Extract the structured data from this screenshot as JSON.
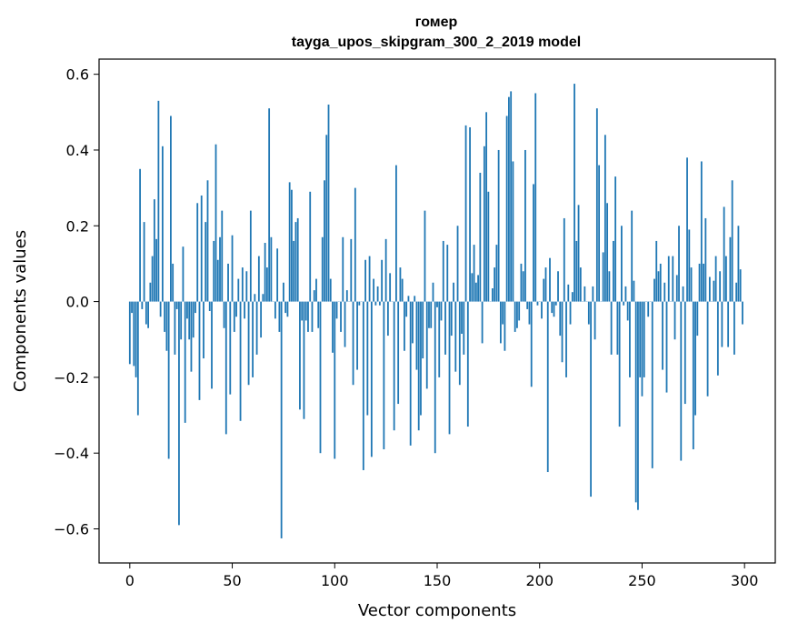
{
  "chart_data": {
    "type": "bar",
    "title": "гомер",
    "subtitle": "tayga_upos_skipgram_300_2_2019 model",
    "xlabel": "Vector components",
    "ylabel": "Components values",
    "xlim": [
      -15,
      315
    ],
    "ylim": [
      -0.69,
      0.64
    ],
    "xticks": [
      0,
      50,
      100,
      150,
      200,
      250,
      300
    ],
    "xtick_labels": [
      "0",
      "50",
      "100",
      "150",
      "200",
      "250",
      "300"
    ],
    "yticks": [
      -0.6,
      -0.4,
      -0.2,
      0.0,
      0.2,
      0.4,
      0.6
    ],
    "ytick_labels": [
      "−0.6",
      "−0.4",
      "−0.2",
      "0.0",
      "0.2",
      "0.4",
      "0.6"
    ],
    "bar_color": "#1f77b4",
    "values": [
      -0.165,
      -0.03,
      -0.17,
      -0.2,
      -0.3,
      0.35,
      -0.02,
      0.21,
      -0.06,
      -0.07,
      0.05,
      0.12,
      0.27,
      0.165,
      0.53,
      -0.04,
      0.41,
      -0.08,
      -0.13,
      -0.415,
      0.49,
      0.1,
      -0.14,
      -0.02,
      -0.59,
      -0.1,
      0.145,
      -0.32,
      -0.045,
      -0.1,
      -0.185,
      -0.095,
      -0.03,
      0.26,
      -0.26,
      0.28,
      -0.15,
      0.21,
      0.32,
      -0.025,
      -0.23,
      0.16,
      0.415,
      0.11,
      0.17,
      0.24,
      -0.07,
      -0.35,
      0.1,
      -0.245,
      0.175,
      -0.08,
      -0.04,
      0.06,
      -0.315,
      0.09,
      -0.045,
      0.08,
      -0.22,
      0.24,
      -0.2,
      0.02,
      -0.14,
      0.12,
      -0.095,
      0.02,
      0.155,
      0.09,
      0.51,
      0.17,
      0.0,
      -0.045,
      0.14,
      -0.08,
      -0.625,
      0.05,
      -0.03,
      -0.04,
      0.315,
      0.295,
      0.16,
      0.21,
      0.22,
      -0.285,
      -0.05,
      -0.31,
      -0.05,
      -0.08,
      0.29,
      -0.08,
      0.03,
      0.06,
      -0.07,
      -0.4,
      0.17,
      0.32,
      0.44,
      0.52,
      0.06,
      -0.135,
      -0.415,
      -0.045,
      0.0,
      -0.08,
      0.17,
      -0.12,
      0.03,
      0.0,
      0.165,
      -0.22,
      0.3,
      -0.18,
      -0.01,
      0.0,
      -0.445,
      0.11,
      -0.3,
      0.12,
      -0.41,
      0.06,
      -0.01,
      0.04,
      -0.01,
      0.11,
      -0.39,
      0.165,
      -0.09,
      0.075,
      0.0,
      -0.34,
      0.36,
      -0.27,
      0.09,
      0.06,
      -0.13,
      -0.04,
      0.015,
      -0.38,
      -0.11,
      0.015,
      -0.18,
      -0.34,
      -0.3,
      -0.15,
      0.24,
      -0.23,
      -0.07,
      -0.07,
      0.05,
      -0.4,
      -0.015,
      -0.2,
      -0.05,
      0.16,
      -0.14,
      0.15,
      -0.35,
      -0.09,
      0.05,
      -0.185,
      0.2,
      -0.22,
      -0.085,
      -0.14,
      0.465,
      -0.33,
      0.46,
      0.075,
      0.15,
      0.05,
      0.07,
      0.34,
      -0.11,
      0.41,
      0.5,
      0.29,
      0.0,
      0.035,
      0.09,
      0.15,
      0.4,
      -0.11,
      -0.06,
      -0.13,
      0.49,
      0.54,
      0.555,
      0.37,
      -0.08,
      -0.07,
      -0.05,
      0.1,
      0.08,
      0.4,
      -0.02,
      -0.06,
      -0.225,
      0.31,
      0.55,
      -0.01,
      0.0,
      -0.045,
      0.06,
      0.09,
      -0.45,
      0.115,
      -0.03,
      -0.04,
      -0.01,
      0.08,
      -0.09,
      -0.16,
      0.22,
      -0.2,
      0.045,
      -0.06,
      0.025,
      0.575,
      0.16,
      0.255,
      0.09,
      0.0,
      0.04,
      0.0,
      -0.06,
      -0.515,
      0.04,
      -0.1,
      0.51,
      0.36,
      0.0,
      0.13,
      0.44,
      0.26,
      0.08,
      -0.14,
      0.16,
      0.33,
      -0.14,
      -0.33,
      0.2,
      -0.01,
      0.04,
      -0.05,
      -0.2,
      0.24,
      0.055,
      -0.53,
      -0.55,
      -0.2,
      -0.25,
      -0.2,
      0.0,
      -0.04,
      0.0,
      -0.44,
      0.06,
      0.16,
      0.08,
      0.1,
      -0.18,
      0.05,
      -0.24,
      0.12,
      0.0,
      0.12,
      -0.1,
      0.07,
      0.2,
      -0.42,
      0.04,
      -0.27,
      0.38,
      0.19,
      0.09,
      -0.39,
      -0.3,
      -0.09,
      0.1,
      0.37,
      0.1,
      0.22,
      -0.25,
      0.065,
      0.0,
      0.055,
      0.12,
      -0.195,
      0.08,
      -0.12,
      0.25,
      0.12,
      -0.12,
      0.17,
      0.32,
      -0.14,
      0.05,
      0.2,
      0.085,
      -0.06
    ]
  }
}
